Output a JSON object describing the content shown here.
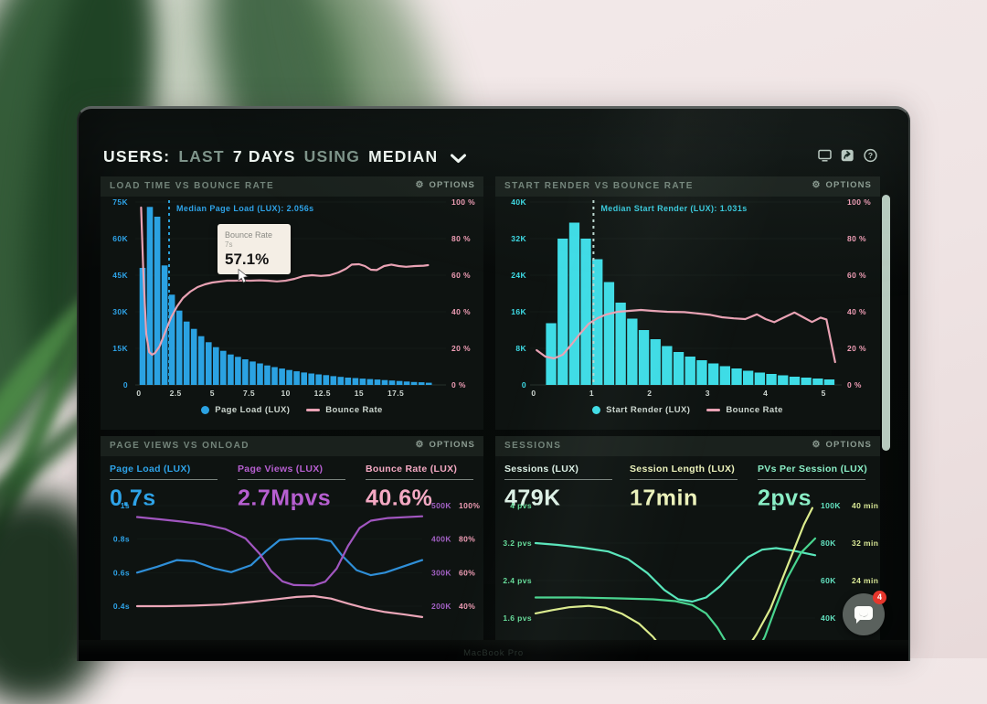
{
  "header": {
    "part1": "USERS:",
    "part2": "LAST",
    "part3": "7 DAYS",
    "part4": "USING",
    "part5": "MEDIAN",
    "icons": [
      "display-icon",
      "share-icon",
      "help-icon"
    ]
  },
  "ui": {
    "options_label": "OPTIONS",
    "gear_glyph": "⚙",
    "help_glyph": "?"
  },
  "colors": {
    "accent_blue": "#2ea3e8",
    "accent_cyan": "#3edce6",
    "accent_pink": "#ef9db5",
    "accent_purple": "#a55ac2",
    "accent_mint": "#59e6bb",
    "accent_green": "#49d48f",
    "accent_yellow": "#dcec8d",
    "tooltip_bg": "#f4eee5",
    "badge_red": "#e6362c"
  },
  "panels": {
    "load_time": {
      "title": "LOAD TIME VS BOUNCE RATE"
    },
    "start_render": {
      "title": "START RENDER VS BOUNCE RATE"
    },
    "page_views": {
      "title": "PAGE VIEWS VS ONLOAD",
      "stats": [
        {
          "label": "Page Load (LUX)",
          "value": "0.7s",
          "color": "#2ea3e8"
        },
        {
          "label": "Page Views (LUX)",
          "value": "2.7Mpvs",
          "color": "#b75fd1"
        },
        {
          "label": "Bounce Rate (LUX)",
          "value": "40.6%",
          "color": "#f4a9c3"
        }
      ]
    },
    "sessions": {
      "title": "SESSIONS",
      "stats": [
        {
          "label": "Sessions (LUX)",
          "value": "479K",
          "color": "#ddf1e6"
        },
        {
          "label": "Session Length (LUX)",
          "value": "17min",
          "color": "#ecf2bb"
        },
        {
          "label": "PVs Per Session (LUX)",
          "value": "2pvs",
          "color": "#8aeec6"
        }
      ]
    }
  },
  "tooltip": {
    "title": "Bounce Rate",
    "sub": "7s",
    "value": "57.1%"
  },
  "chat": {
    "badge": "4"
  },
  "bezel": {
    "label": "MacBook Pro"
  },
  "chart_data": [
    {
      "id": "c1",
      "type": "bar+line",
      "left_max": 75,
      "bar_color": "#2ba2e2",
      "line_color": "#e9a2b4",
      "axis_colors": {
        "left": "#2ea3e8",
        "right": "#ef9db5",
        "x": "#cdd6d0"
      },
      "left_ticks": [
        "0",
        "15K",
        "30K",
        "45K",
        "60K",
        "75K"
      ],
      "right_ticks": [
        "0 %",
        "20 %",
        "40 %",
        "60 %",
        "80 %",
        "100 %"
      ],
      "x_ticks": [
        {
          "v": 0,
          "t": "0"
        },
        {
          "v": 2.5,
          "t": "2.5"
        },
        {
          "v": 5,
          "t": "5"
        },
        {
          "v": 7.5,
          "t": "7.5"
        },
        {
          "v": 10,
          "t": "10"
        },
        {
          "v": 12.5,
          "t": "12.5"
        },
        {
          "v": 15,
          "t": "15"
        },
        {
          "v": 17.5,
          "t": "17.5"
        }
      ],
      "bars": {
        "start": 0.25,
        "bin": 0.5,
        "values": [
          48,
          73,
          69,
          49,
          37,
          30.5,
          26,
          23,
          20,
          17.5,
          15.5,
          14,
          12.5,
          11.5,
          10.5,
          9.6,
          8.8,
          8,
          7.3,
          6.7,
          6.1,
          5.6,
          5.1,
          4.7,
          4.3,
          4,
          3.6,
          3.3,
          3,
          2.8,
          2.6,
          2.4,
          2.2,
          2,
          1.8,
          1.6,
          1.4,
          1.2,
          1.1,
          0.9
        ]
      },
      "median": {
        "x": 2.056,
        "label": "Median Page Load (LUX): 2.056s",
        "line_color": "#2a9fd8",
        "text_color": "#2ea3e8"
      },
      "line_points": [
        [
          0.15,
          97
        ],
        [
          0.3,
          62
        ],
        [
          0.5,
          28
        ],
        [
          0.7,
          18
        ],
        [
          0.9,
          16.5
        ],
        [
          1.1,
          17.5
        ],
        [
          1.4,
          21
        ],
        [
          1.8,
          29
        ],
        [
          2.2,
          37
        ],
        [
          2.6,
          43
        ],
        [
          3,
          47.5
        ],
        [
          3.5,
          51
        ],
        [
          4,
          53.5
        ],
        [
          4.5,
          55
        ],
        [
          5,
          56
        ],
        [
          5.5,
          56.5
        ],
        [
          6,
          57
        ],
        [
          6.5,
          57
        ],
        [
          7,
          57.1
        ],
        [
          7.6,
          57
        ],
        [
          8.2,
          57.2
        ],
        [
          8.8,
          57
        ],
        [
          9.4,
          56.6
        ],
        [
          10,
          57
        ],
        [
          10.6,
          58
        ],
        [
          11.2,
          59.5
        ],
        [
          11.8,
          60
        ],
        [
          12.4,
          59.6
        ],
        [
          13,
          60
        ],
        [
          13.6,
          61.5
        ],
        [
          14.1,
          63.5
        ],
        [
          14.5,
          65.8
        ],
        [
          15,
          66
        ],
        [
          15.4,
          65
        ],
        [
          15.8,
          63
        ],
        [
          16.2,
          62.8
        ],
        [
          16.7,
          65
        ],
        [
          17.2,
          65.8
        ],
        [
          17.7,
          65
        ],
        [
          18.2,
          64.6
        ],
        [
          18.8,
          65
        ],
        [
          19.4,
          65.2
        ],
        [
          19.7,
          65.5
        ]
      ],
      "legend": [
        {
          "type": "dot",
          "color": "#2ba2e2",
          "label": "Page Load (LUX)"
        },
        {
          "type": "line",
          "color": "#e9a2b4",
          "label": "Bounce Rate"
        }
      ]
    },
    {
      "id": "c2",
      "type": "bar+line",
      "left_max": 40,
      "bar_color": "#3edce6",
      "line_color": "#e9a2b4",
      "axis_colors": {
        "left": "#3edce6",
        "right": "#ef9db5",
        "x": "#cdd6d0"
      },
      "left_ticks": [
        "0",
        "8K",
        "16K",
        "24K",
        "32K",
        "40K"
      ],
      "right_ticks": [
        "0 %",
        "20 %",
        "40 %",
        "60 %",
        "80 %",
        "100 %"
      ],
      "x_ticks": [
        {
          "v": 0,
          "t": "0"
        },
        {
          "v": 1,
          "t": "1"
        },
        {
          "v": 2,
          "t": "2"
        },
        {
          "v": 3,
          "t": "3"
        },
        {
          "v": 4,
          "t": "4"
        },
        {
          "v": 5,
          "t": "5"
        }
      ],
      "bars": {
        "start": 0.3,
        "bin": 0.2,
        "values": [
          13.5,
          32,
          35.5,
          32,
          27.5,
          22.5,
          18,
          14.5,
          12,
          10,
          8.5,
          7.2,
          6.2,
          5.4,
          4.7,
          4.1,
          3.6,
          3.1,
          2.7,
          2.4,
          2.1,
          1.8,
          1.6,
          1.4,
          1.2
        ]
      },
      "median": {
        "x": 1.031,
        "label": "Median Start Render (LUX): 1.031s",
        "line_color": "#bcd8d0",
        "text_color": "#35c8dc"
      },
      "line_points": [
        [
          0.05,
          19
        ],
        [
          0.2,
          15.5
        ],
        [
          0.35,
          14.5
        ],
        [
          0.5,
          16.5
        ],
        [
          0.65,
          22
        ],
        [
          0.8,
          28
        ],
        [
          0.95,
          33.5
        ],
        [
          1.1,
          36.5
        ],
        [
          1.25,
          38.5
        ],
        [
          1.45,
          40
        ],
        [
          1.65,
          40.5
        ],
        [
          1.85,
          41
        ],
        [
          2.05,
          40.5
        ],
        [
          2.3,
          40
        ],
        [
          2.6,
          39.8
        ],
        [
          2.85,
          39
        ],
        [
          3.05,
          38.3
        ],
        [
          3.25,
          37
        ],
        [
          3.45,
          36.4
        ],
        [
          3.65,
          36
        ],
        [
          3.85,
          38.6
        ],
        [
          4,
          36
        ],
        [
          4.15,
          34.3
        ],
        [
          4.3,
          36.6
        ],
        [
          4.5,
          39.6
        ],
        [
          4.65,
          37
        ],
        [
          4.8,
          34.4
        ],
        [
          4.95,
          36.8
        ],
        [
          5.05,
          35.8
        ],
        [
          5.2,
          12.5
        ]
      ],
      "legend": [
        {
          "type": "dot",
          "color": "#3edce6",
          "label": "Start Render (LUX)"
        },
        {
          "type": "line",
          "color": "#e9a2b4",
          "label": "Bounce Rate"
        }
      ]
    },
    {
      "id": "c3",
      "type": "multiline",
      "axis_colors": {
        "left": "#2ea3e8",
        "rightA": "#a361c5",
        "rightB": "#ef9db5"
      },
      "rows": [
        {
          "v": 1,
          "left": "1s",
          "rightA": "500K",
          "rightB": "100%"
        },
        {
          "v": 0.8,
          "left": "0.8s",
          "rightA": "400K",
          "rightB": "80%"
        },
        {
          "v": 0.6,
          "left": "0.6s",
          "rightA": "300K",
          "rightB": "60%"
        },
        {
          "v": 0.4,
          "left": "0.4s",
          "rightA": "200K",
          "rightB": "40%"
        }
      ],
      "series": [
        {
          "name": "Page Load (LUX)",
          "unit": "s",
          "color": "#2f8fd8",
          "points": [
            [
              0,
              0.6
            ],
            [
              0.07,
              0.635
            ],
            [
              0.14,
              0.675
            ],
            [
              0.2,
              0.668
            ],
            [
              0.27,
              0.625
            ],
            [
              0.33,
              0.603
            ],
            [
              0.4,
              0.645
            ],
            [
              0.45,
              0.725
            ],
            [
              0.5,
              0.795
            ],
            [
              0.56,
              0.803
            ],
            [
              0.63,
              0.803
            ],
            [
              0.68,
              0.788
            ],
            [
              0.72,
              0.7
            ],
            [
              0.77,
              0.615
            ],
            [
              0.82,
              0.585
            ],
            [
              0.87,
              0.6
            ],
            [
              0.93,
              0.635
            ],
            [
              1,
              0.675
            ]
          ]
        },
        {
          "name": "Page Views (LUX)",
          "unit": "K",
          "color": "#a156c0",
          "points": [
            [
              0,
              466
            ],
            [
              0.08,
              459
            ],
            [
              0.16,
              452
            ],
            [
              0.24,
              443
            ],
            [
              0.31,
              430
            ],
            [
              0.38,
              402
            ],
            [
              0.43,
              356
            ],
            [
              0.47,
              305
            ],
            [
              0.51,
              274
            ],
            [
              0.55,
              263
            ],
            [
              0.62,
              262
            ],
            [
              0.66,
              273
            ],
            [
              0.7,
              312
            ],
            [
              0.74,
              380
            ],
            [
              0.78,
              433
            ],
            [
              0.82,
              455
            ],
            [
              0.88,
              463
            ],
            [
              1,
              468
            ]
          ]
        },
        {
          "name": "Bounce Rate (LUX)",
          "unit": "pct",
          "color": "#eba6b8",
          "points": [
            [
              0,
              40
            ],
            [
              0.1,
              40
            ],
            [
              0.2,
              40.3
            ],
            [
              0.3,
              41
            ],
            [
              0.4,
              42.5
            ],
            [
              0.48,
              44
            ],
            [
              0.56,
              45.5
            ],
            [
              0.62,
              46
            ],
            [
              0.68,
              44.5
            ],
            [
              0.74,
              41.5
            ],
            [
              0.8,
              38.8
            ],
            [
              0.87,
              36.5
            ],
            [
              0.94,
              35
            ],
            [
              1,
              33.5
            ]
          ]
        }
      ]
    },
    {
      "id": "c4",
      "type": "multiline",
      "axis_colors": {
        "left": "#66dd9a",
        "rightA": "#63e2c0",
        "rightB": "#d9e896"
      },
      "rows": [
        {
          "v": 4,
          "left": "4 pvs",
          "rightA": "100K",
          "rightB": "40 min"
        },
        {
          "v": 3.2,
          "left": "3.2 pvs",
          "rightA": "80K",
          "rightB": "32 min"
        },
        {
          "v": 2.4,
          "left": "2.4 pvs",
          "rightA": "60K",
          "rightB": "24 min"
        },
        {
          "v": 1.6,
          "left": "1.6 pvs",
          "rightA": "40K",
          "rightB": ""
        }
      ],
      "series": [
        {
          "name": "Sessions (LUX)",
          "unit": "K",
          "color": "#59e6bb",
          "points": [
            [
              0,
              80
            ],
            [
              0.08,
              79
            ],
            [
              0.17,
              77.5
            ],
            [
              0.26,
              75.5
            ],
            [
              0.33,
              71.5
            ],
            [
              0.4,
              64
            ],
            [
              0.46,
              55
            ],
            [
              0.51,
              50
            ],
            [
              0.56,
              48.8
            ],
            [
              0.61,
              51
            ],
            [
              0.66,
              57
            ],
            [
              0.71,
              65
            ],
            [
              0.76,
              72.5
            ],
            [
              0.81,
              76.5
            ],
            [
              0.86,
              77.3
            ],
            [
              0.92,
              76
            ],
            [
              1,
              73.5
            ]
          ]
        },
        {
          "name": "PVs Per Session (LUX)",
          "unit": "pvs",
          "color": "#49d48f",
          "points": [
            [
              0,
              2.04
            ],
            [
              0.15,
              2.04
            ],
            [
              0.3,
              2.02
            ],
            [
              0.42,
              2
            ],
            [
              0.5,
              1.96
            ],
            [
              0.56,
              1.88
            ],
            [
              0.61,
              1.7
            ],
            [
              0.65,
              1.4
            ],
            [
              0.69,
              1
            ],
            [
              0.72,
              0.7
            ],
            [
              0.75,
              0.55
            ],
            [
              0.78,
              0.75
            ],
            [
              0.82,
              1.2
            ],
            [
              0.86,
              1.85
            ],
            [
              0.9,
              2.45
            ],
            [
              0.95,
              3
            ],
            [
              1,
              3.3
            ]
          ]
        },
        {
          "name": "Session Length (LUX)",
          "unit": "min",
          "color": "#dcec8d",
          "points": [
            [
              0,
              17
            ],
            [
              0.06,
              17.7
            ],
            [
              0.12,
              18.3
            ],
            [
              0.19,
              18.6
            ],
            [
              0.25,
              18.2
            ],
            [
              0.31,
              16.9
            ],
            [
              0.37,
              14.8
            ],
            [
              0.42,
              12
            ],
            [
              0.46,
              9
            ],
            [
              0.5,
              6.5
            ],
            [
              0.68,
              5
            ],
            [
              0.74,
              8
            ],
            [
              0.79,
              12.5
            ],
            [
              0.84,
              18
            ],
            [
              0.88,
              24
            ],
            [
              0.92,
              30
            ],
            [
              0.96,
              36
            ],
            [
              0.99,
              39.5
            ]
          ]
        }
      ]
    }
  ]
}
